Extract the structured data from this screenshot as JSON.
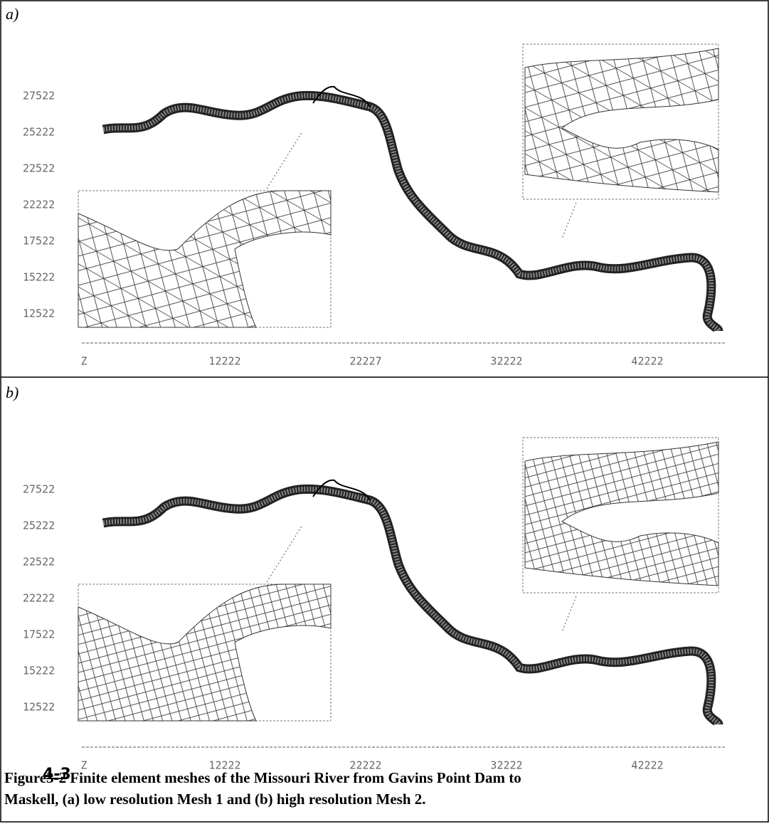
{
  "panels": [
    {
      "label": "a)",
      "yticks": [
        "27522",
        "25222",
        "22522",
        "22222",
        "17522",
        "15222",
        "12522"
      ],
      "xticks": [
        "Z",
        "12222",
        "22227",
        "32222",
        "42222"
      ]
    },
    {
      "label": "b)",
      "yticks": [
        "27522",
        "25222",
        "22522",
        "22222",
        "17522",
        "15222",
        "12522"
      ],
      "xticks": [
        "Z",
        "12222",
        "22222",
        "32222",
        "42222"
      ]
    }
  ],
  "caption": {
    "handwritten_number": "4-3",
    "prefix": "Figure",
    "struck_number": "3-2",
    "line1": " Finite element meshes of the Missouri River from Gavins Point Dam to",
    "line2": "Maskell, (a) low resolution Mesh 1 and (b) high resolution Mesh 2."
  }
}
